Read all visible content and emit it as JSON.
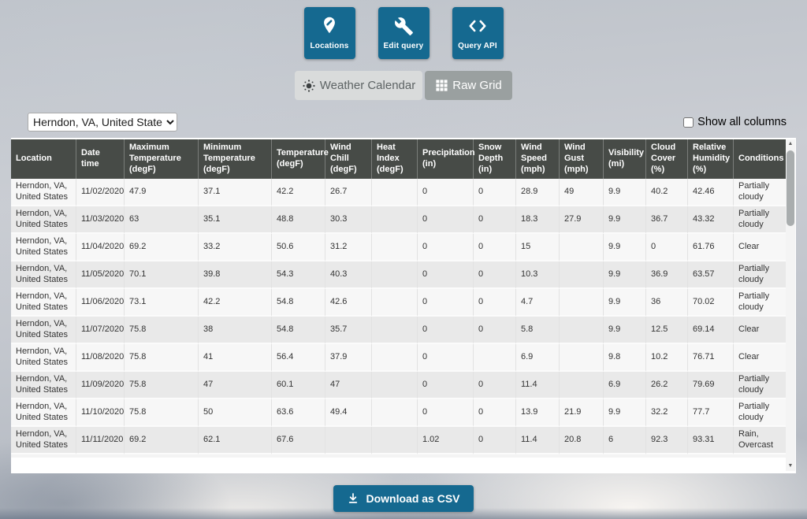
{
  "toolbar": {
    "buttons": [
      {
        "label": "Locations",
        "icon": "map-pin-edit-icon"
      },
      {
        "label": "Edit query",
        "icon": "wrench-icon"
      },
      {
        "label": "Query API",
        "icon": "code-brackets-icon"
      }
    ]
  },
  "tabs": [
    {
      "label": "Weather Calendar",
      "icon": "sun-icon",
      "active": false
    },
    {
      "label": "Raw Grid",
      "icon": "grid-icon",
      "active": true
    }
  ],
  "location_select": {
    "value": "Herndon, VA, United States"
  },
  "controls": {
    "show_all_columns_label": "Show all columns",
    "show_all_columns_checked": false
  },
  "table": {
    "columns": [
      "Location",
      "Date time",
      "Maximum Temperature (degF)",
      "Minimum Temperature (degF)",
      "Temperature (degF)",
      "Wind Chill (degF)",
      "Heat Index (degF)",
      "Precipitation (in)",
      "Snow Depth (in)",
      "Wind Speed (mph)",
      "Wind Gust (mph)",
      "Visibility (mi)",
      "Cloud Cover (%)",
      "Relative Humidity (%)",
      "Conditions"
    ],
    "rows": [
      [
        "Herndon, VA, United States",
        "11/02/2020",
        "47.9",
        "37.1",
        "42.2",
        "26.7",
        "",
        "0",
        "0",
        "28.9",
        "49",
        "9.9",
        "40.2",
        "42.46",
        "Partially cloudy"
      ],
      [
        "Herndon, VA, United States",
        "11/03/2020",
        "63",
        "35.1",
        "48.8",
        "30.3",
        "",
        "0",
        "0",
        "18.3",
        "27.9",
        "9.9",
        "36.7",
        "43.32",
        "Partially cloudy"
      ],
      [
        "Herndon, VA, United States",
        "11/04/2020",
        "69.2",
        "33.2",
        "50.6",
        "31.2",
        "",
        "0",
        "0",
        "15",
        "",
        "9.9",
        "0",
        "61.76",
        "Clear"
      ],
      [
        "Herndon, VA, United States",
        "11/05/2020",
        "70.1",
        "39.8",
        "54.3",
        "40.3",
        "",
        "0",
        "0",
        "10.3",
        "",
        "9.9",
        "36.9",
        "63.57",
        "Partially cloudy"
      ],
      [
        "Herndon, VA, United States",
        "11/06/2020",
        "73.1",
        "42.2",
        "54.8",
        "42.6",
        "",
        "0",
        "0",
        "4.7",
        "",
        "9.9",
        "36",
        "70.02",
        "Partially cloudy"
      ],
      [
        "Herndon, VA, United States",
        "11/07/2020",
        "75.8",
        "38",
        "54.8",
        "35.7",
        "",
        "0",
        "0",
        "5.8",
        "",
        "9.9",
        "12.5",
        "69.14",
        "Clear"
      ],
      [
        "Herndon, VA, United States",
        "11/08/2020",
        "75.8",
        "41",
        "56.4",
        "37.9",
        "",
        "0",
        "",
        "6.9",
        "",
        "9.8",
        "10.2",
        "76.71",
        "Clear"
      ],
      [
        "Herndon, VA, United States",
        "11/09/2020",
        "75.8",
        "47",
        "60.1",
        "47",
        "",
        "0",
        "0",
        "11.4",
        "",
        "6.9",
        "26.2",
        "79.69",
        "Partially cloudy"
      ],
      [
        "Herndon, VA, United States",
        "11/10/2020",
        "75.8",
        "50",
        "63.6",
        "49.4",
        "",
        "0",
        "0",
        "13.9",
        "21.9",
        "9.9",
        "32.2",
        "77.7",
        "Partially cloudy"
      ],
      [
        "Herndon, VA, United States",
        "11/11/2020",
        "69.2",
        "62.1",
        "67.6",
        "",
        "",
        "1.02",
        "0",
        "11.4",
        "20.8",
        "6",
        "92.3",
        "93.31",
        "Rain, Overcast"
      ]
    ]
  },
  "download": {
    "label": "Download as CSV",
    "icon": "download-icon"
  },
  "colors": {
    "accent_teal": "#156990",
    "table_header_bg": "#474b47",
    "row_odd": "#f7f7f7",
    "row_even": "#e9e9e9",
    "tab_active_bg": "#9aa0a0",
    "tab_inactive_bg": "#d9dbdb"
  }
}
